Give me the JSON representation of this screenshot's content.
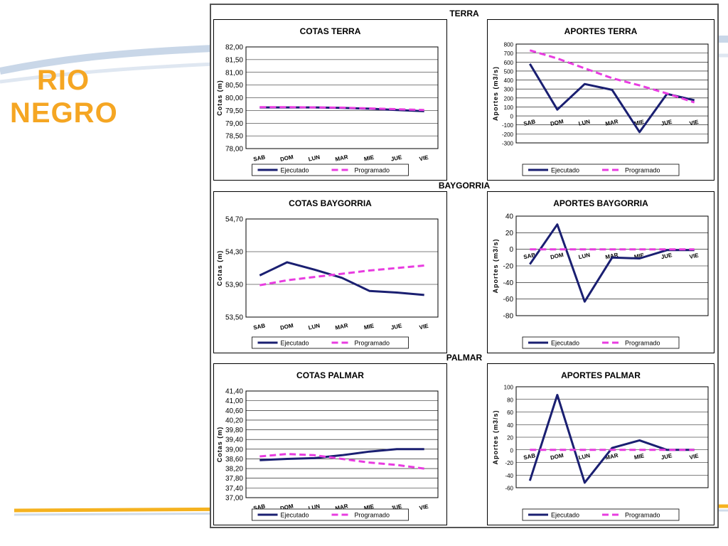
{
  "slide": {
    "title_line1": "RIO",
    "title_line2": "NEGRO"
  },
  "sections": {
    "terra": "TERRA",
    "baygorria": "BAYGORRIA",
    "palmar": "PALMAR"
  },
  "legend": {
    "ejecutado": "Ejecutado",
    "programado": "Programado"
  },
  "colors": {
    "ejecutado": "#1a1f71",
    "programado": "#e83ce0",
    "title": "#f5a623"
  },
  "chart_data": [
    {
      "id": "cotas-terra",
      "type": "line",
      "title": "COTAS TERRA",
      "ylabel": "Cotas (m)",
      "categories": [
        "SAB",
        "DOM",
        "LUN",
        "MAR",
        "MIE",
        "JUE",
        "VIE"
      ],
      "ylim": [
        78.0,
        82.0
      ],
      "yticks": [
        "78,00",
        "78,50",
        "79,00",
        "79,50",
        "80,00",
        "80,50",
        "81,00",
        "81,50",
        "82,00"
      ],
      "series": [
        {
          "name": "Ejecutado",
          "values": [
            79.62,
            79.62,
            79.62,
            79.6,
            79.57,
            79.52,
            79.47
          ]
        },
        {
          "name": "Programado",
          "values": [
            79.63,
            79.63,
            79.62,
            79.61,
            79.58,
            79.55,
            79.52
          ]
        }
      ]
    },
    {
      "id": "aportes-terra",
      "type": "line",
      "title": "APORTES TERRA",
      "ylabel": "Aportes (m3/s)",
      "categories": [
        "SAB",
        "DOM",
        "LUN",
        "MAR",
        "MIE",
        "JUE",
        "VIE"
      ],
      "ylim": [
        -300,
        800
      ],
      "yticks": [
        "-300",
        "-200",
        "-100",
        "0",
        "100",
        "200",
        "300",
        "400",
        "500",
        "600",
        "700",
        "800"
      ],
      "series": [
        {
          "name": "Ejecutado",
          "values": [
            580,
            70,
            355,
            290,
            -180,
            245,
            175
          ]
        },
        {
          "name": "Programado",
          "values": [
            730,
            640,
            530,
            420,
            340,
            250,
            150
          ]
        }
      ]
    },
    {
      "id": "cotas-baygorria",
      "type": "line",
      "title": "COTAS BAYGORRIA",
      "ylabel": "Cotas (m)",
      "categories": [
        "SAB",
        "DOM",
        "LUN",
        "MAR",
        "MIE",
        "JUE",
        "VIE"
      ],
      "ylim": [
        53.5,
        54.7
      ],
      "yticks": [
        "53,50",
        "53,90",
        "54,30",
        "54,70"
      ],
      "series": [
        {
          "name": "Ejecutado",
          "values": [
            54.01,
            54.17,
            54.08,
            53.98,
            53.82,
            53.8,
            53.77
          ]
        },
        {
          "name": "Programado",
          "values": [
            53.89,
            53.95,
            53.99,
            54.03,
            54.07,
            54.1,
            54.13
          ]
        }
      ]
    },
    {
      "id": "aportes-baygorria",
      "type": "line",
      "title": "APORTES BAYGORRIA",
      "ylabel": "Aportes (m3/s)",
      "categories": [
        "SAB",
        "DOM",
        "LUN",
        "MAR",
        "MIE",
        "JUE",
        "VIE"
      ],
      "ylim": [
        -80,
        40
      ],
      "yticks": [
        "-80",
        "-60",
        "-40",
        "-20",
        "0",
        "20",
        "40"
      ],
      "series": [
        {
          "name": "Ejecutado",
          "values": [
            -18,
            30,
            -63,
            -10,
            -11,
            -1,
            -1
          ]
        },
        {
          "name": "Programado",
          "values": [
            0,
            0,
            0,
            0,
            0,
            0,
            0
          ]
        }
      ]
    },
    {
      "id": "cotas-palmar",
      "type": "line",
      "title": "COTAS PALMAR",
      "ylabel": "Cotas (m)",
      "categories": [
        "SAB",
        "DOM",
        "LUN",
        "MAR",
        "MIE",
        "JUE",
        "VIE"
      ],
      "ylim": [
        37.0,
        41.4
      ],
      "yticks": [
        "37,00",
        "37,40",
        "37,80",
        "38,20",
        "38,60",
        "39,00",
        "39,40",
        "39,80",
        "40,20",
        "40,60",
        "41,00",
        "41,40"
      ],
      "series": [
        {
          "name": "Ejecutado",
          "values": [
            38.55,
            38.6,
            38.63,
            38.75,
            38.9,
            39.0,
            39.0
          ]
        },
        {
          "name": "Programado",
          "values": [
            38.7,
            38.8,
            38.75,
            38.6,
            38.45,
            38.35,
            38.2
          ]
        }
      ]
    },
    {
      "id": "aportes-palmar",
      "type": "line",
      "title": "APORTES PALMAR",
      "ylabel": "Aportes (m3/s)",
      "categories": [
        "SAB",
        "DOM",
        "LUN",
        "MAR",
        "MIE",
        "JUE",
        "VIE"
      ],
      "ylim": [
        -60,
        100
      ],
      "yticks": [
        "-60",
        "-40",
        "-20",
        "0",
        "20",
        "40",
        "60",
        "80",
        "100"
      ],
      "series": [
        {
          "name": "Ejecutado",
          "values": [
            -49,
            87,
            -52,
            3,
            15,
            0,
            0
          ]
        },
        {
          "name": "Programado",
          "values": [
            0,
            0,
            0,
            0,
            0,
            0,
            0
          ]
        }
      ]
    }
  ]
}
